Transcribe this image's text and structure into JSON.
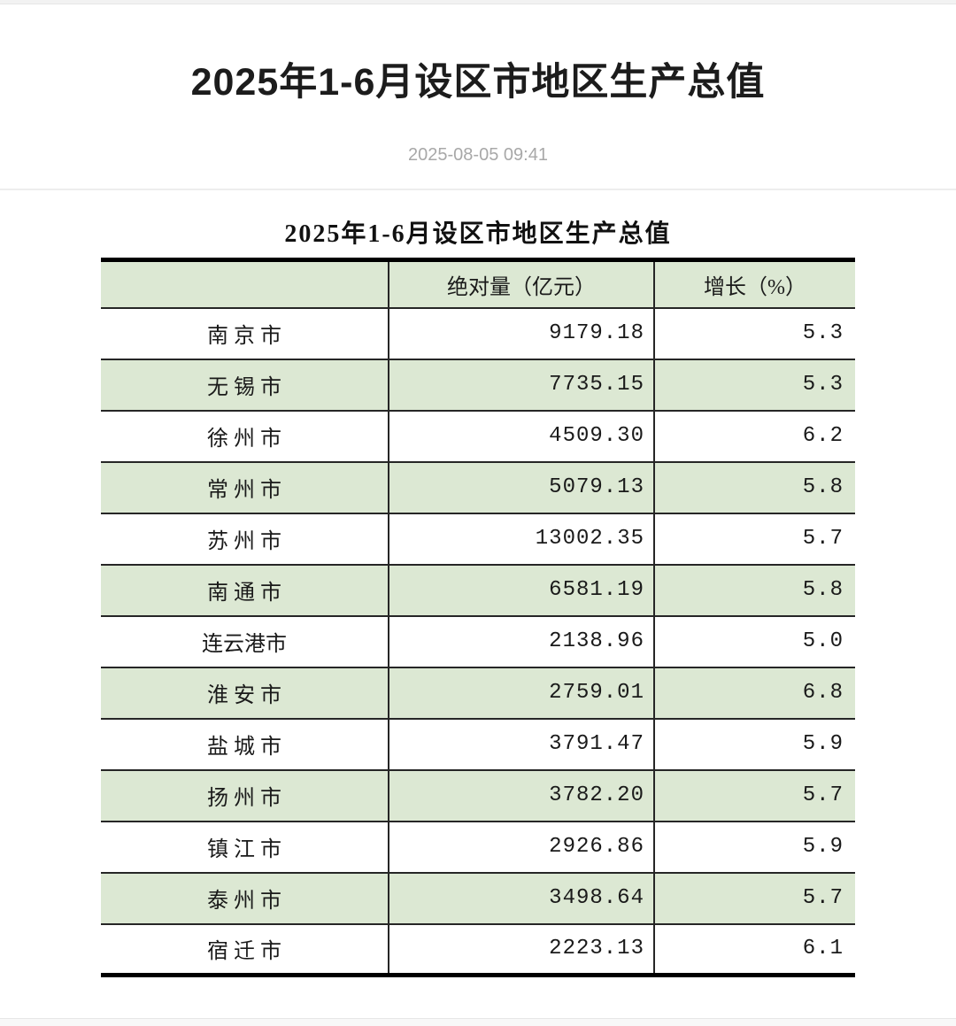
{
  "page": {
    "title": "2025年1-6月设区市地区生产总值",
    "timestamp": "2025-08-05 09:41"
  },
  "table": {
    "title": "2025年1-6月设区市地区生产总值",
    "columns": [
      {
        "key": "region",
        "label": ""
      },
      {
        "key": "absolute",
        "label": "绝对量（亿元）"
      },
      {
        "key": "growth",
        "label": "增长（%）"
      }
    ],
    "rows": [
      {
        "city": "南 京 市",
        "absolute": "9179.18",
        "growth": "5.3"
      },
      {
        "city": "无 锡 市",
        "absolute": "7735.15",
        "growth": "5.3"
      },
      {
        "city": "徐 州 市",
        "absolute": "4509.30",
        "growth": "6.2"
      },
      {
        "city": "常 州 市",
        "absolute": "5079.13",
        "growth": "5.8"
      },
      {
        "city": "苏 州 市",
        "absolute": "13002.35",
        "growth": "5.7"
      },
      {
        "city": "南 通 市",
        "absolute": "6581.19",
        "growth": "5.8"
      },
      {
        "city": "连云港市",
        "absolute": "2138.96",
        "growth": "5.0"
      },
      {
        "city": "淮 安 市",
        "absolute": "2759.01",
        "growth": "6.8"
      },
      {
        "city": "盐 城 市",
        "absolute": "3791.47",
        "growth": "5.9"
      },
      {
        "city": "扬 州 市",
        "absolute": "3782.20",
        "growth": "5.7"
      },
      {
        "city": "镇 江 市",
        "absolute": "2926.86",
        "growth": "5.9"
      },
      {
        "city": "泰 州 市",
        "absolute": "3498.64",
        "growth": "5.7"
      },
      {
        "city": "宿 迁 市",
        "absolute": "2223.13",
        "growth": "6.1"
      }
    ],
    "colors": {
      "row_highlight": "#dce8d3",
      "border_dark": "#262626",
      "border_thick": "#000000"
    }
  }
}
